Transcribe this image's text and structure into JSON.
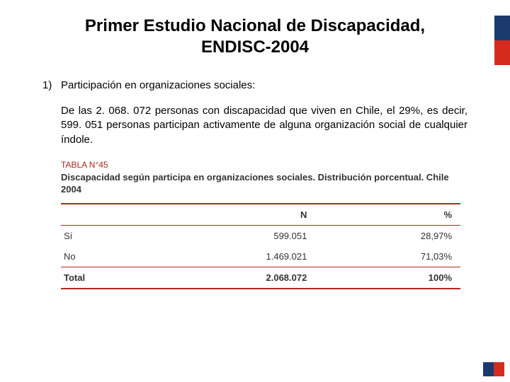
{
  "title_line1": "Primer Estudio Nacional de Discapacidad,",
  "title_line2": "ENDISC-2004",
  "list": {
    "num": "1)",
    "text": "Participación en organizaciones sociales:"
  },
  "paragraph": "De las 2. 068. 072 personas con discapacidad que viven en Chile, el 29%, es decir, 599. 051 personas participan activamente de alguna organización social de cualquier índole.",
  "table": {
    "label": "TABLA N°45",
    "caption": "Discapacidad según participa en organizaciones sociales. Distribución porcentual. Chile 2004",
    "columns": {
      "c1": "",
      "c2": "N",
      "c3": "%"
    },
    "rows": [
      {
        "label": "Sí",
        "n": "599.051",
        "pct": "28,97%"
      },
      {
        "label": "No",
        "n": "1.469.021",
        "pct": "71,03%"
      }
    ],
    "total": {
      "label": "Total",
      "n": "2.068.072",
      "pct": "100%"
    },
    "rule_color": "#b02a1e",
    "label_color": "#b02a1e"
  },
  "colors": {
    "flag_blue": "#1a3a6e",
    "flag_red": "#d52b1e",
    "background": "#ffffff",
    "text": "#000000"
  }
}
